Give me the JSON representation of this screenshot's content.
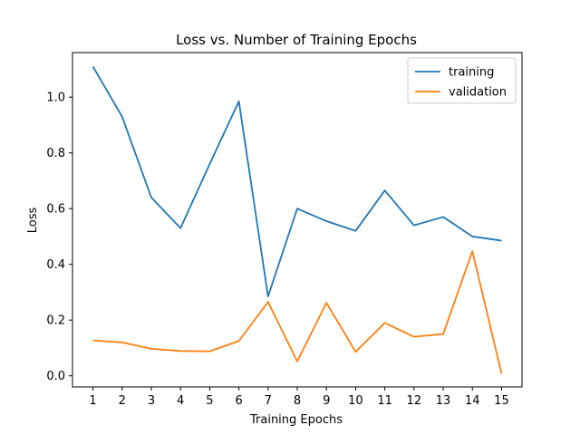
{
  "chart_data": {
    "type": "line",
    "title": "Loss vs. Number of Training Epochs",
    "xlabel": "Training Epochs",
    "ylabel": "Loss",
    "x": [
      1,
      2,
      3,
      4,
      5,
      6,
      7,
      8,
      9,
      10,
      11,
      12,
      13,
      14,
      15
    ],
    "xlim": [
      0.3,
      15.7
    ],
    "ylim": [
      -0.04,
      1.16
    ],
    "yticks": [
      0.0,
      0.2,
      0.4,
      0.6,
      0.8,
      1.0
    ],
    "grid": false,
    "legend": "top-right",
    "series": [
      {
        "name": "training",
        "color": "#1f77b4",
        "values": [
          1.11,
          0.93,
          0.64,
          0.53,
          0.76,
          0.985,
          0.285,
          0.6,
          0.555,
          0.52,
          0.665,
          0.54,
          0.57,
          0.5,
          0.485
        ]
      },
      {
        "name": "validation",
        "color": "#ff7f0e",
        "values": [
          0.127,
          0.12,
          0.097,
          0.089,
          0.088,
          0.125,
          0.265,
          0.052,
          0.262,
          0.086,
          0.19,
          0.14,
          0.15,
          0.447,
          0.008
        ]
      }
    ]
  }
}
